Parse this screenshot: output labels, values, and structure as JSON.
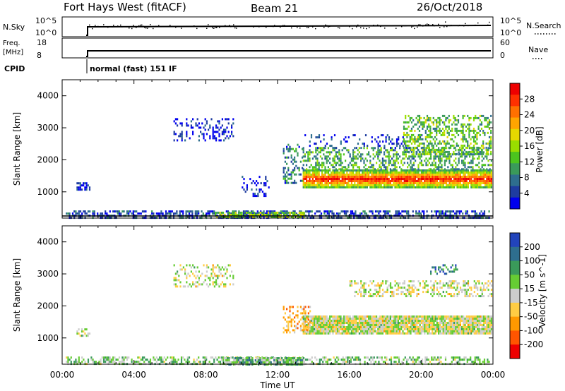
{
  "header": {
    "title": "Fort Hays West (fitACF)",
    "beam": "Beam 21",
    "date": "26/Oct/2018"
  },
  "top_panels": {
    "nsky_label": "N.Sky",
    "nsearch_label": "N.Search",
    "nsky_ticks": [
      "10^5",
      "10^0"
    ],
    "nsearch_ticks": [
      "10^5",
      "10^0"
    ],
    "freq_label_1": "Freq.",
    "freq_label_2": "[MHz]",
    "freq_ticks": [
      "18",
      "8"
    ],
    "nave_label": "Nave",
    "nave_ticks": [
      "60",
      "0"
    ],
    "cpid_label": "CPID",
    "cpid_text": "normal (fast) 151 IF"
  },
  "chart_data": [
    {
      "type": "heatmap",
      "name": "power",
      "xlabel": "Time UT",
      "ylabel": "Slant Range [km]",
      "x_ticks": [
        "00:00",
        "04:00",
        "08:00",
        "12:00",
        "16:00",
        "20:00",
        "00:00"
      ],
      "xlim_hours": [
        0,
        24
      ],
      "ylim": [
        180,
        4500
      ],
      "y_ticks": [
        1000,
        2000,
        3000,
        4000
      ],
      "colorbar_label": "Power [dB]",
      "colorbar_ticks": [
        "28",
        "24",
        "20",
        "16",
        "12",
        "8",
        "4"
      ],
      "colorbar_colors": [
        "#0000ee",
        "#1e3ca0",
        "#2e6e8e",
        "#3a9a5a",
        "#4cc41e",
        "#99dd00",
        "#e6d800",
        "#ffa500",
        "#ff7000",
        "#ff3000",
        "#ee0000"
      ],
      "regions": [
        {
          "t0": 0.2,
          "t1": 23.8,
          "r0": 180,
          "r1": 420,
          "level": 0.15,
          "density": 0.55
        },
        {
          "t0": 8.5,
          "t1": 13.5,
          "r0": 200,
          "r1": 380,
          "level": 0.45,
          "density": 0.7
        },
        {
          "t0": 13.4,
          "t1": 23.9,
          "r0": 1150,
          "r1": 1700,
          "level": 0.85,
          "density": 0.95
        },
        {
          "t0": 13.4,
          "t1": 23.9,
          "r0": 1700,
          "r1": 2400,
          "level": 0.35,
          "density": 0.4
        },
        {
          "t0": 12.3,
          "t1": 13.4,
          "r0": 1300,
          "r1": 2500,
          "level": 0.25,
          "density": 0.35
        },
        {
          "t0": 13.5,
          "t1": 20.0,
          "r0": 2400,
          "r1": 2800,
          "level": 0.1,
          "density": 0.2
        },
        {
          "t0": 19.0,
          "t1": 23.9,
          "r0": 2200,
          "r1": 3400,
          "level": 0.4,
          "density": 0.45
        },
        {
          "t0": 6.2,
          "t1": 9.5,
          "r0": 2600,
          "r1": 3300,
          "level": 0.05,
          "density": 0.25
        },
        {
          "t0": 0.8,
          "t1": 1.5,
          "r0": 1100,
          "r1": 1300,
          "level": 0.1,
          "density": 0.5
        },
        {
          "t0": 10.0,
          "t1": 11.5,
          "r0": 900,
          "r1": 1500,
          "level": 0.05,
          "density": 0.25
        }
      ]
    },
    {
      "type": "heatmap",
      "name": "velocity",
      "xlabel": "Time UT",
      "ylabel": "Slant Range [km]",
      "x_ticks": [
        "00:00",
        "04:00",
        "08:00",
        "12:00",
        "16:00",
        "20:00",
        "00:00"
      ],
      "xlim_hours": [
        0,
        24
      ],
      "ylim": [
        180,
        4500
      ],
      "y_ticks": [
        1000,
        2000,
        3000,
        4000
      ],
      "colorbar_label": "Velocity [m s^-1]",
      "colorbar_ticks": [
        "200",
        "100",
        "50",
        "15",
        "-15",
        "-50",
        "-100",
        "-200"
      ],
      "colorbar_colors": [
        "#2244bb",
        "#2e6e8e",
        "#3a9a5a",
        "#66cc33",
        "#cccccc",
        "#ffcc44",
        "#ff9900",
        "#ff5500",
        "#ee0000"
      ],
      "regions": [
        {
          "t0": 0.2,
          "t1": 23.8,
          "r0": 180,
          "r1": 420,
          "level": 0.6,
          "density": 0.5
        },
        {
          "t0": 9.0,
          "t1": 13.5,
          "r0": 200,
          "r1": 400,
          "level": 0.65,
          "density": 0.75
        },
        {
          "t0": 13.4,
          "t1": 23.9,
          "r0": 1150,
          "r1": 1700,
          "level": 0.5,
          "density": 0.95
        },
        {
          "t0": 12.3,
          "t1": 13.8,
          "r0": 1200,
          "r1": 2000,
          "level": 0.35,
          "density": 0.4
        },
        {
          "t0": 16.0,
          "t1": 23.9,
          "r0": 2300,
          "r1": 2800,
          "level": 0.5,
          "density": 0.4
        },
        {
          "t0": 20.5,
          "t1": 22.0,
          "r0": 3000,
          "r1": 3300,
          "level": 0.8,
          "density": 0.35
        },
        {
          "t0": 6.2,
          "t1": 9.5,
          "r0": 2600,
          "r1": 3300,
          "level": 0.5,
          "density": 0.25
        },
        {
          "t0": 0.8,
          "t1": 1.5,
          "r0": 1100,
          "r1": 1300,
          "level": 0.5,
          "density": 0.5
        }
      ]
    }
  ]
}
